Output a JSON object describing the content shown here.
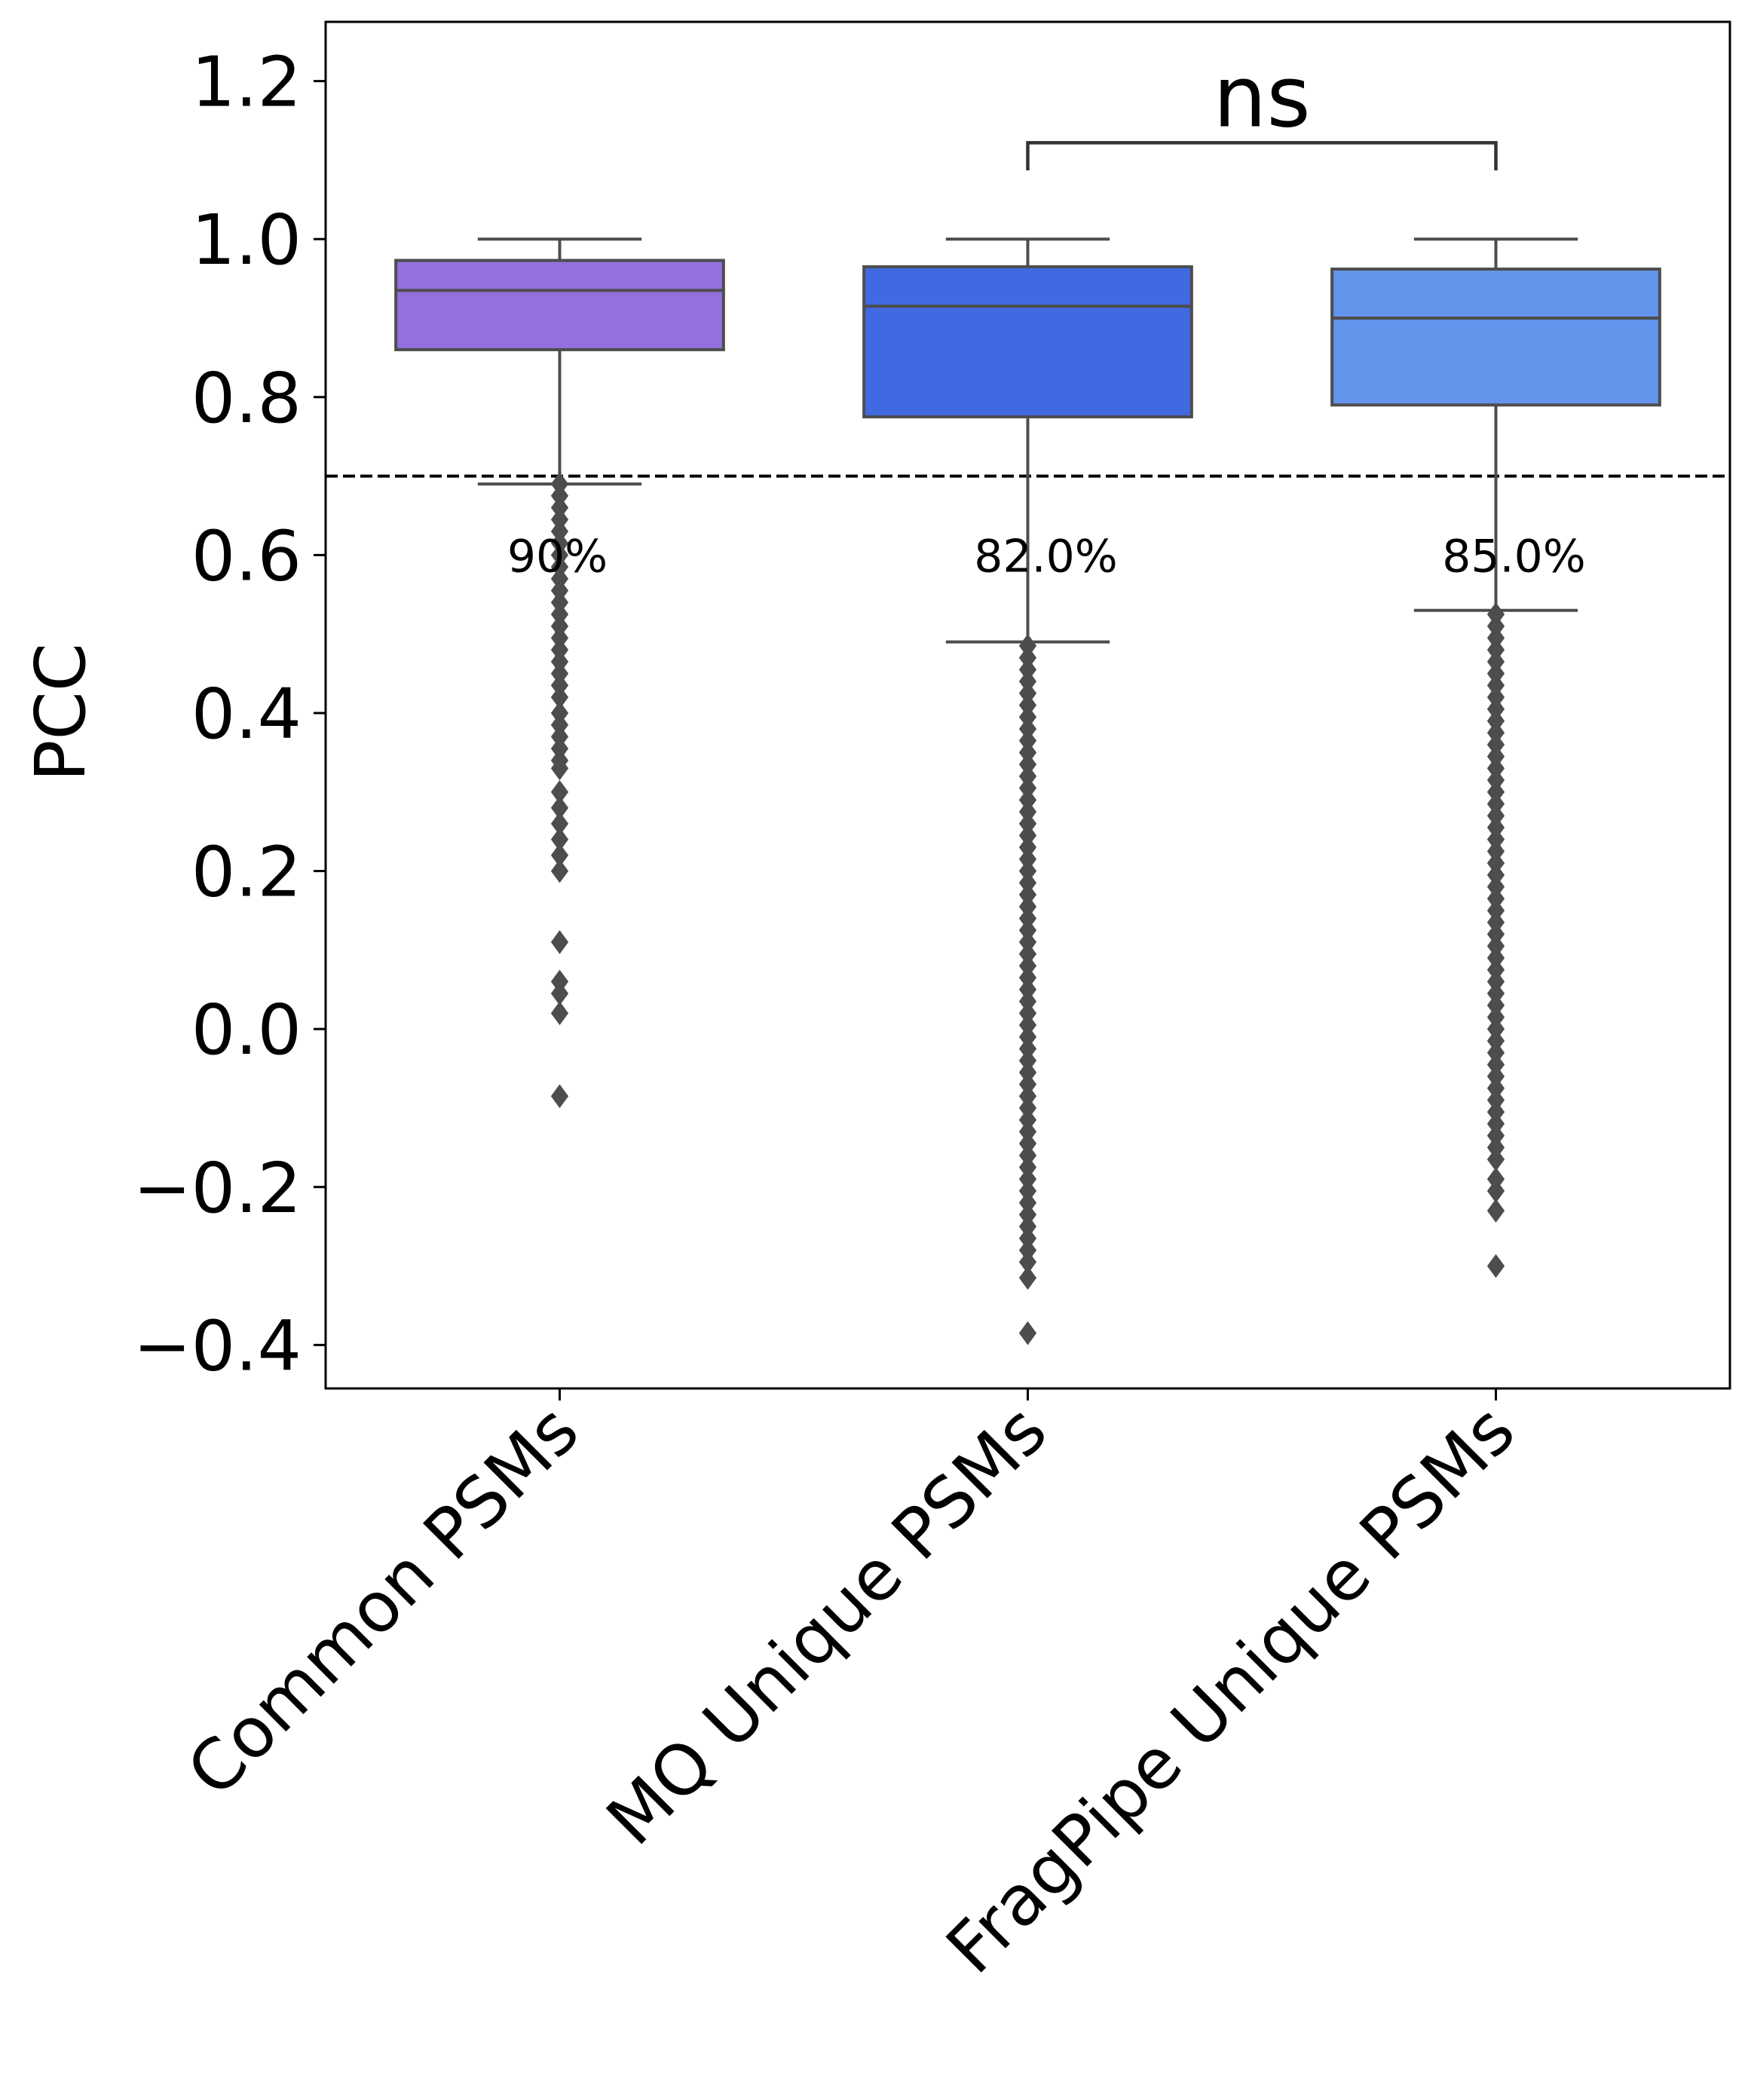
{
  "chart_data": {
    "type": "box",
    "categories": [
      "Common PSMs",
      "MQ Unique PSMs",
      "FragPipe Unique PSMs"
    ],
    "xlabel": "",
    "ylabel": "PCC",
    "ylim": [
      -0.455,
      1.275
    ],
    "yticks": [
      -0.4,
      -0.2,
      0.0,
      0.2,
      0.4,
      0.6,
      0.8,
      1.0,
      1.2
    ],
    "ytick_labels": [
      "−0.4",
      "−0.2",
      "0.0",
      "0.2",
      "0.4",
      "0.6",
      "0.8",
      "1.0",
      "1.2"
    ],
    "threshold": 0.7,
    "grid": false,
    "boxes": [
      {
        "category": "Common PSMs",
        "color": "#9370DB",
        "q1": 0.86,
        "median": 0.935,
        "q3": 0.973,
        "whisker_low": 0.69,
        "whisker_high": 1.0,
        "outliers": [
          0.69,
          0.675,
          0.66,
          0.645,
          0.63,
          0.615,
          0.6,
          0.585,
          0.57,
          0.555,
          0.54,
          0.525,
          0.51,
          0.495,
          0.48,
          0.465,
          0.45,
          0.435,
          0.42,
          0.4,
          0.385,
          0.37,
          0.355,
          0.34,
          0.33,
          0.3,
          0.28,
          0.26,
          0.24,
          0.22,
          0.2,
          0.11,
          0.06,
          0.045,
          0.02,
          -0.085
        ],
        "pct_label": "90%"
      },
      {
        "category": "MQ Unique PSMs",
        "color": "#4169E1",
        "q1": 0.775,
        "median": 0.915,
        "q3": 0.965,
        "whisker_low": 0.49,
        "whisker_high": 1.0,
        "outliers": [
          0.485,
          0.47,
          0.455,
          0.44,
          0.425,
          0.41,
          0.395,
          0.38,
          0.365,
          0.35,
          0.335,
          0.32,
          0.305,
          0.29,
          0.275,
          0.26,
          0.245,
          0.23,
          0.215,
          0.2,
          0.185,
          0.17,
          0.155,
          0.14,
          0.125,
          0.11,
          0.095,
          0.08,
          0.065,
          0.05,
          0.035,
          0.02,
          0.005,
          -0.01,
          -0.025,
          -0.04,
          -0.055,
          -0.07,
          -0.085,
          -0.1,
          -0.115,
          -0.13,
          -0.145,
          -0.16,
          -0.175,
          -0.19,
          -0.205,
          -0.22,
          -0.235,
          -0.25,
          -0.265,
          -0.28,
          -0.295,
          -0.315,
          -0.385
        ],
        "pct_label": "82.0%"
      },
      {
        "category": "FragPipe Unique PSMs",
        "color": "#6495ED",
        "q1": 0.79,
        "median": 0.9,
        "q3": 0.962,
        "whisker_low": 0.53,
        "whisker_high": 1.0,
        "outliers": [
          0.525,
          0.51,
          0.495,
          0.48,
          0.465,
          0.45,
          0.435,
          0.42,
          0.405,
          0.39,
          0.375,
          0.36,
          0.345,
          0.33,
          0.315,
          0.3,
          0.285,
          0.27,
          0.255,
          0.24,
          0.225,
          0.21,
          0.195,
          0.18,
          0.165,
          0.15,
          0.135,
          0.12,
          0.105,
          0.09,
          0.075,
          0.06,
          0.045,
          0.03,
          0.015,
          0.0,
          -0.015,
          -0.03,
          -0.045,
          -0.06,
          -0.075,
          -0.09,
          -0.105,
          -0.12,
          -0.135,
          -0.15,
          -0.165,
          -0.19,
          -0.205,
          -0.23,
          -0.3
        ],
        "pct_label": "85.0%"
      }
    ],
    "significance": {
      "from": "MQ Unique PSMs",
      "to": "FragPipe Unique PSMs",
      "y": 1.122,
      "label": "ns"
    }
  }
}
